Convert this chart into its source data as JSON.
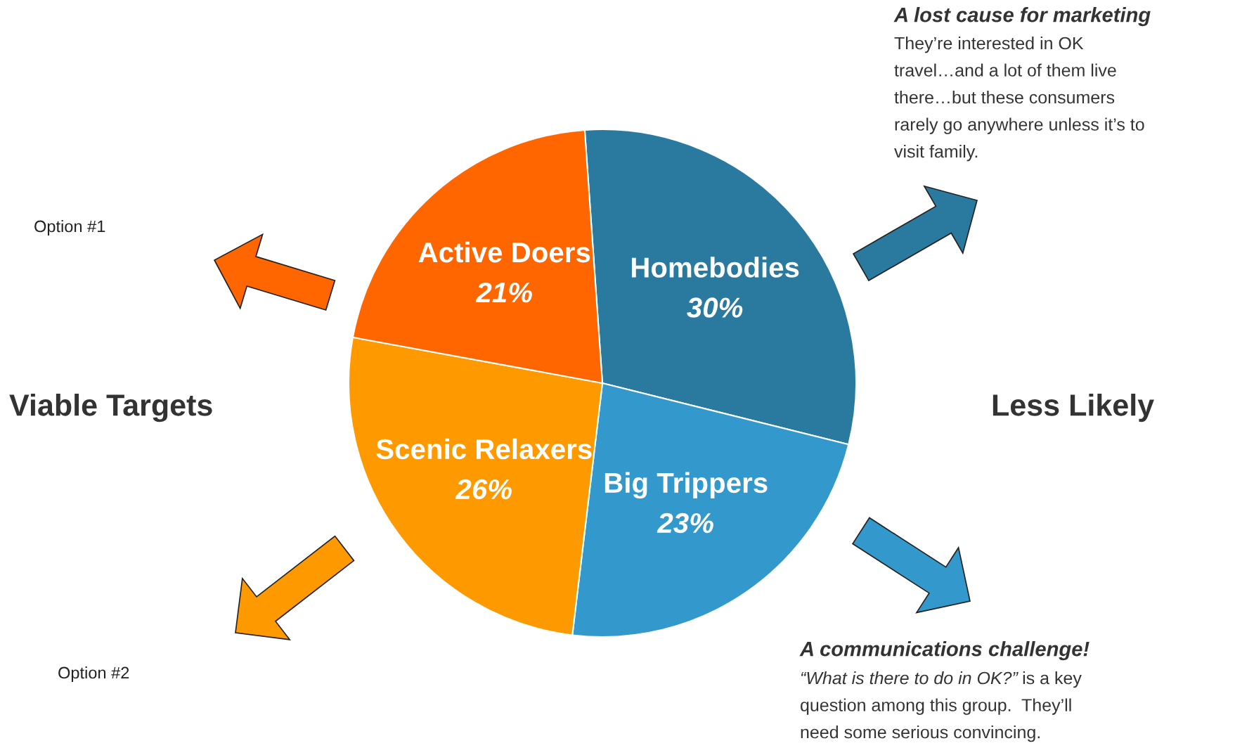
{
  "chart_data": {
    "type": "pie",
    "categories": [
      "Homebodies",
      "Big Trippers",
      "Scenic Relaxers",
      "Active Doers"
    ],
    "values": [
      30,
      23,
      26,
      21
    ],
    "colors": [
      "#2a7aa0",
      "#3399cc",
      "#ff9900",
      "#ff6600"
    ],
    "value_labels": [
      "30%",
      "23%",
      "26%",
      "21%"
    ],
    "annotations": [
      "A lost cause for marketing",
      "They’re interested in OK\ntravel…and a lot of them live\nthere…but these consumers\nrarely go anywhere unless it’s to\nvisit family.",
      "Option #1",
      "Viable Targets",
      "Less Likely",
      "Option #2",
      "A communications challenge!",
      "“What is there to do in OK?”",
      "is a key\nquestion among this group.  They’ll\nneed some serious convincing."
    ]
  }
}
